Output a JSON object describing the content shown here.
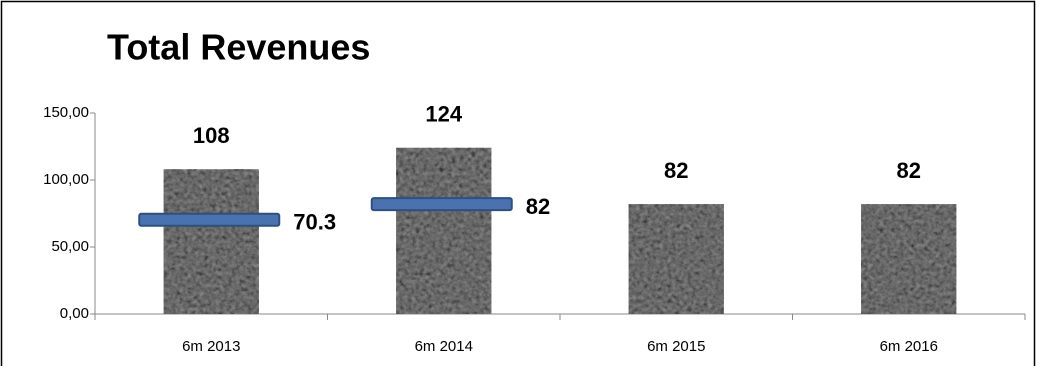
{
  "chart_data": {
    "type": "bar",
    "title": "Total Revenues",
    "categories": [
      "6m 2013",
      "6m 2014",
      "6m 2015",
      "6m 2016"
    ],
    "values": [
      108,
      124,
      82,
      82
    ],
    "color": "#8a8a8a",
    "marker_values": [
      70.3,
      82,
      null,
      null
    ],
    "marker_color": "#4a72b0",
    "ylim": [
      0,
      150
    ],
    "yticks": [
      {
        "value": 0,
        "label": "0,00"
      },
      {
        "value": 50,
        "label": "50,00"
      },
      {
        "value": 100,
        "label": "100,00"
      },
      {
        "value": 150,
        "label": "150,00"
      }
    ],
    "grid": false
  }
}
